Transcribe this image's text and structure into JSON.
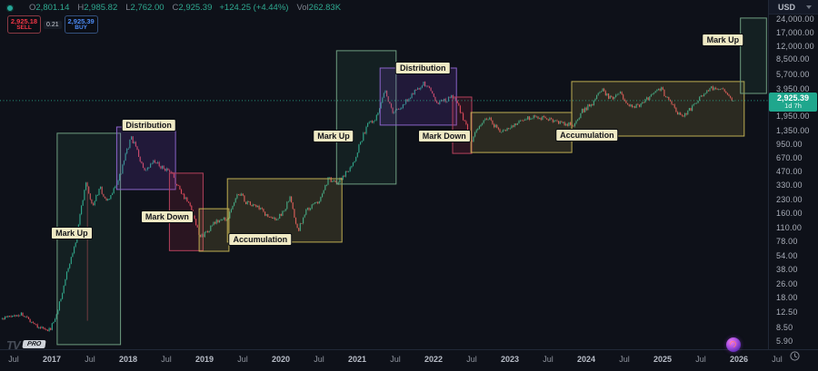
{
  "header": {
    "ohlc": {
      "o_label": "O",
      "o": "2,801.14",
      "h_label": "H",
      "h": "2,985.82",
      "l_label": "L",
      "l": "2,762.00",
      "c_label": "C",
      "c": "2,925.39",
      "change": "+124.25 (+4.44%)",
      "vol_label": "Vol",
      "vol": "262.83K"
    },
    "trade": {
      "sell_price": "2,925.18",
      "sell_label": "SELL",
      "spread": "0.21",
      "buy_price": "2,925.39",
      "buy_label": "BUY"
    }
  },
  "price_axis": {
    "currency": "USD",
    "ticks": [
      {
        "v": 24000,
        "label": "24,000.00"
      },
      {
        "v": 17000,
        "label": "17,000.00"
      },
      {
        "v": 12000,
        "label": "12,000.00"
      },
      {
        "v": 8500,
        "label": "8,500.00"
      },
      {
        "v": 5700,
        "label": "5,700.00"
      },
      {
        "v": 3950,
        "label": "3,950.00"
      },
      {
        "v": 1950,
        "label": "1,950.00"
      },
      {
        "v": 1350,
        "label": "1,350.00"
      },
      {
        "v": 950,
        "label": "950.00"
      },
      {
        "v": 670,
        "label": "670.00"
      },
      {
        "v": 470,
        "label": "470.00"
      },
      {
        "v": 330,
        "label": "330.00"
      },
      {
        "v": 230,
        "label": "230.00"
      },
      {
        "v": 160,
        "label": "160.00"
      },
      {
        "v": 110,
        "label": "110.00"
      },
      {
        "v": 78,
        "label": "78.00"
      },
      {
        "v": 54,
        "label": "54.00"
      },
      {
        "v": 38,
        "label": "38.00"
      },
      {
        "v": 26,
        "label": "26.00"
      },
      {
        "v": 18,
        "label": "18.00"
      },
      {
        "v": 12.5,
        "label": "12.50"
      },
      {
        "v": 8.5,
        "label": "8.50"
      },
      {
        "v": 5.9,
        "label": "5.90"
      }
    ],
    "badge": {
      "price": "2,925.39",
      "countdown": "1d 7h",
      "color": "#1fa78d"
    }
  },
  "time_axis": {
    "ticks": [
      {
        "t": 2016.5,
        "label": "Jul"
      },
      {
        "t": 2017,
        "label": "2017"
      },
      {
        "t": 2017.5,
        "label": "Jul"
      },
      {
        "t": 2018,
        "label": "2018"
      },
      {
        "t": 2018.5,
        "label": "Jul"
      },
      {
        "t": 2019,
        "label": "2019"
      },
      {
        "t": 2019.5,
        "label": "Jul"
      },
      {
        "t": 2020,
        "label": "2020"
      },
      {
        "t": 2020.5,
        "label": "Jul"
      },
      {
        "t": 2021,
        "label": "2021"
      },
      {
        "t": 2021.5,
        "label": "Jul"
      },
      {
        "t": 2022,
        "label": "2022"
      },
      {
        "t": 2022.5,
        "label": "Jul"
      },
      {
        "t": 2023,
        "label": "2023"
      },
      {
        "t": 2023.5,
        "label": "Jul"
      },
      {
        "t": 2024,
        "label": "2024"
      },
      {
        "t": 2024.5,
        "label": "Jul"
      },
      {
        "t": 2025,
        "label": "2025"
      },
      {
        "t": 2025.5,
        "label": "Jul"
      },
      {
        "t": 2026,
        "label": "2026"
      },
      {
        "t": 2026.5,
        "label": "Jul"
      }
    ]
  },
  "footer": {
    "pro_label": "PRO",
    "logo_text": "TV"
  },
  "colors": {
    "background": "#0e1119",
    "up": "#2fa98f",
    "down": "#e2505c",
    "sell_accent": "#f23645",
    "buy_accent": "#4c8bf5",
    "label_bg": "#efe9c4",
    "badge_bg": "#1fa78d"
  },
  "chart_data": {
    "type": "candlestick",
    "timeframe_hint": "weekly",
    "t_start": 2016.35,
    "t_end": 2025.93,
    "current_price": 2925.39,
    "up_color": "#2fa98f",
    "down_color": "#e2505c",
    "grid": false,
    "y_scale": "log",
    "y_range": [
      5.9,
      24000
    ],
    "x_range": [
      2016.3,
      2026.6
    ],
    "price_path": [
      [
        2016.35,
        10.5
      ],
      [
        2016.6,
        12
      ],
      [
        2016.8,
        9
      ],
      [
        2016.95,
        7.5
      ],
      [
        2017.05,
        10.5
      ],
      [
        2017.18,
        30
      ],
      [
        2017.3,
        70
      ],
      [
        2017.45,
        380
      ],
      [
        2017.53,
        190
      ],
      [
        2017.63,
        310
      ],
      [
        2017.72,
        210
      ],
      [
        2017.82,
        300
      ],
      [
        2017.9,
        440
      ],
      [
        2017.98,
        780
      ],
      [
        2018.04,
        1120
      ],
      [
        2018.1,
        880
      ],
      [
        2018.22,
        450
      ],
      [
        2018.33,
        610
      ],
      [
        2018.46,
        520
      ],
      [
        2018.58,
        430
      ],
      [
        2018.68,
        280
      ],
      [
        2018.8,
        210
      ],
      [
        2018.95,
        85
      ],
      [
        2019.05,
        105
      ],
      [
        2019.15,
        128
      ],
      [
        2019.3,
        140
      ],
      [
        2019.45,
        280
      ],
      [
        2019.55,
        210
      ],
      [
        2019.7,
        185
      ],
      [
        2019.88,
        135
      ],
      [
        2020.0,
        150
      ],
      [
        2020.12,
        235
      ],
      [
        2020.22,
        100
      ],
      [
        2020.32,
        165
      ],
      [
        2020.5,
        225
      ],
      [
        2020.62,
        390
      ],
      [
        2020.72,
        345
      ],
      [
        2020.85,
        450
      ],
      [
        2020.95,
        600
      ],
      [
        2021.05,
        1050
      ],
      [
        2021.15,
        1650
      ],
      [
        2021.25,
        1900
      ],
      [
        2021.36,
        4000
      ],
      [
        2021.46,
        2150
      ],
      [
        2021.56,
        2350
      ],
      [
        2021.68,
        3200
      ],
      [
        2021.86,
        4600
      ],
      [
        2021.95,
        3950
      ],
      [
        2022.05,
        2750
      ],
      [
        2022.15,
        2950
      ],
      [
        2022.27,
        3300
      ],
      [
        2022.38,
        1950
      ],
      [
        2022.5,
        1020
      ],
      [
        2022.62,
        1650
      ],
      [
        2022.72,
        1900
      ],
      [
        2022.88,
        1260
      ],
      [
        2023.0,
        1480
      ],
      [
        2023.15,
        1750
      ],
      [
        2023.3,
        1980
      ],
      [
        2023.5,
        1820
      ],
      [
        2023.65,
        1680
      ],
      [
        2023.82,
        1560
      ],
      [
        2023.95,
        2250
      ],
      [
        2024.08,
        2700
      ],
      [
        2024.2,
        3850
      ],
      [
        2024.32,
        3050
      ],
      [
        2024.45,
        3500
      ],
      [
        2024.6,
        2400
      ],
      [
        2024.72,
        2650
      ],
      [
        2024.88,
        3450
      ],
      [
        2024.98,
        3950
      ],
      [
        2025.1,
        2750
      ],
      [
        2025.25,
        1900
      ],
      [
        2025.4,
        2550
      ],
      [
        2025.55,
        3650
      ],
      [
        2025.68,
        4150
      ],
      [
        2025.78,
        3850
      ],
      [
        2025.86,
        3300
      ],
      [
        2025.93,
        2925.39
      ]
    ],
    "special_wicks": [
      {
        "t": 2017.46,
        "low": 10
      }
    ],
    "phase_styles": {
      "markup": {
        "stroke": "#6f9e81",
        "fill": "rgba(64,142,98,0.13)"
      },
      "distribution": {
        "stroke": "#8a63c9",
        "fill": "rgba(108,62,185,0.20)"
      },
      "markdown": {
        "stroke": "#b6415c",
        "fill": "rgba(183,44,80,0.17)"
      },
      "accumulation": {
        "stroke": "#bfae52",
        "fill": "rgba(178,163,72,0.18)"
      }
    },
    "phases": [
      {
        "type": "markup",
        "t0": 2017.07,
        "t1": 2017.9,
        "p0": 5.4,
        "p1": 1260,
        "label": {
          "text": "Mark Up",
          "t": 2016.99,
          "p": 95,
          "align": "left"
        }
      },
      {
        "type": "distribution",
        "t0": 2017.85,
        "t1": 2018.62,
        "p0": 295,
        "p1": 1480,
        "label": {
          "text": "Distribution",
          "t": 2018.27,
          "p": 1560,
          "align": "center"
        }
      },
      {
        "type": "markdown",
        "t0": 2018.54,
        "t1": 2018.98,
        "p0": 61,
        "p1": 450,
        "label": {
          "text": "Mark Down",
          "t": 2018.51,
          "p": 146,
          "align": "center"
        }
      },
      {
        "type": "accumulation",
        "t0": 2018.93,
        "t1": 2019.32,
        "p0": 60,
        "p1": 180,
        "label": null
      },
      {
        "type": "accumulation",
        "t0": 2019.3,
        "t1": 2020.8,
        "p0": 76,
        "p1": 390,
        "label": {
          "text": "Accumulation",
          "t": 2019.73,
          "p": 81,
          "align": "center"
        }
      },
      {
        "type": "markup",
        "t0": 2020.73,
        "t1": 2021.51,
        "p0": 340,
        "p1": 10600,
        "label": {
          "text": "Mark Up",
          "t": 2020.69,
          "p": 1175,
          "align": "center"
        }
      },
      {
        "type": "distribution",
        "t0": 2021.3,
        "t1": 2022.3,
        "p0": 1555,
        "p1": 6780,
        "label": {
          "text": "Distribution",
          "t": 2021.86,
          "p": 6780,
          "align": "center"
        }
      },
      {
        "type": "markdown",
        "t0": 2022.25,
        "t1": 2022.5,
        "p0": 750,
        "p1": 3210,
        "label": {
          "text": "Mark Down",
          "t": 2022.14,
          "p": 1172,
          "align": "center"
        }
      },
      {
        "type": "accumulation",
        "t0": 2022.49,
        "t1": 2023.81,
        "p0": 768,
        "p1": 2155,
        "label": null
      },
      {
        "type": "accumulation",
        "t0": 2023.81,
        "t1": 2026.07,
        "p0": 1172,
        "p1": 4780,
        "label": {
          "text": "Accumulation",
          "t": 2024.01,
          "p": 1200,
          "align": "center"
        }
      },
      {
        "type": "markup",
        "t0": 2026.02,
        "t1": 2026.36,
        "p0": 3520,
        "p1": 24600,
        "label": {
          "text": "Mark Up",
          "t": 2025.79,
          "p": 14000,
          "align": "center"
        }
      }
    ]
  }
}
